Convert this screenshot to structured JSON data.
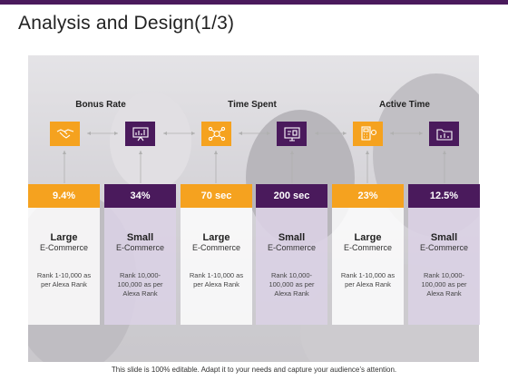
{
  "title": "Analysis and Design(1/3)",
  "groups": [
    "Bonus Rate",
    "Time Spent",
    "Active Time"
  ],
  "icons": [
    "handshake-icon",
    "chart-presentation-icon",
    "network-icon",
    "dashboard-icon",
    "calculator-icon",
    "folder-chart-icon"
  ],
  "columns": [
    {
      "value": "9.4%",
      "size": "Large",
      "category": "E-Commerce",
      "rank": "Rank 1-10,000 as per Alexa Rank"
    },
    {
      "value": "34%",
      "size": "Small",
      "category": "E-Commerce",
      "rank": "Rank 10,000-100,000 as per Alexa Rank"
    },
    {
      "value": "70 sec",
      "size": "Large",
      "category": "E-Commerce",
      "rank": "Rank 1-10,000 as per Alexa Rank"
    },
    {
      "value": "200 sec",
      "size": "Small",
      "category": "E-Commerce",
      "rank": "Rank 10,000-100,000 as per Alexa Rank"
    },
    {
      "value": "23%",
      "size": "Large",
      "category": "E-Commerce",
      "rank": "Rank 1-10,000 as per Alexa Rank"
    },
    {
      "value": "12.5%",
      "size": "Small",
      "category": "E-Commerce",
      "rank": "Rank 10,000-100,000 as per Alexa Rank"
    }
  ],
  "footer": "This slide is 100% editable. Adapt it to your needs and capture your audience’s attention.",
  "colors": {
    "gold": "#f5a21f",
    "purple": "#4a1a5c",
    "title_bar": "#4a1a5c"
  }
}
